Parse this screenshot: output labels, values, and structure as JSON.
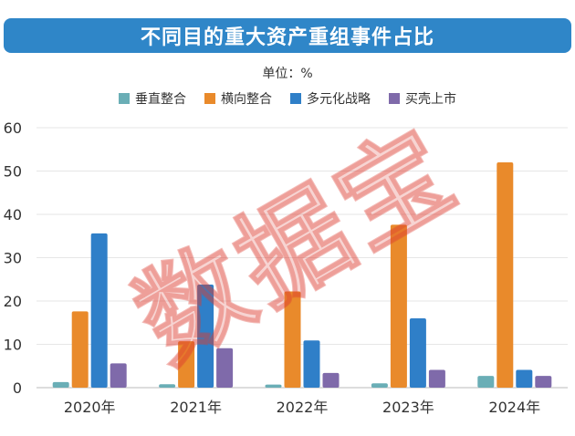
{
  "chart_data": {
    "type": "bar",
    "title": "不同目的重大资产重组事件占比",
    "unit_label": "单位：%",
    "categories": [
      "2020年",
      "2021年",
      "2022年",
      "2023年",
      "2024年"
    ],
    "series": [
      {
        "name": "垂直整合",
        "color": "#6aaeb6",
        "values": [
          1.3,
          0.8,
          0.7,
          1.0,
          2.7
        ]
      },
      {
        "name": "横向整合",
        "color": "#e98a2b",
        "values": [
          17.6,
          10.7,
          22.2,
          37.6,
          52.0
        ]
      },
      {
        "name": "多元化战略",
        "color": "#2f7fc8",
        "values": [
          35.6,
          23.8,
          10.9,
          16.0,
          4.1
        ]
      },
      {
        "name": "买壳上市",
        "color": "#7f6aaa",
        "values": [
          5.6,
          9.1,
          3.4,
          4.1,
          2.7
        ]
      }
    ],
    "ylim": [
      0,
      60
    ],
    "yticks": [
      0,
      10,
      20,
      30,
      40,
      50,
      60
    ],
    "grid": true,
    "legend_position": "top"
  },
  "watermark": "数据宝"
}
